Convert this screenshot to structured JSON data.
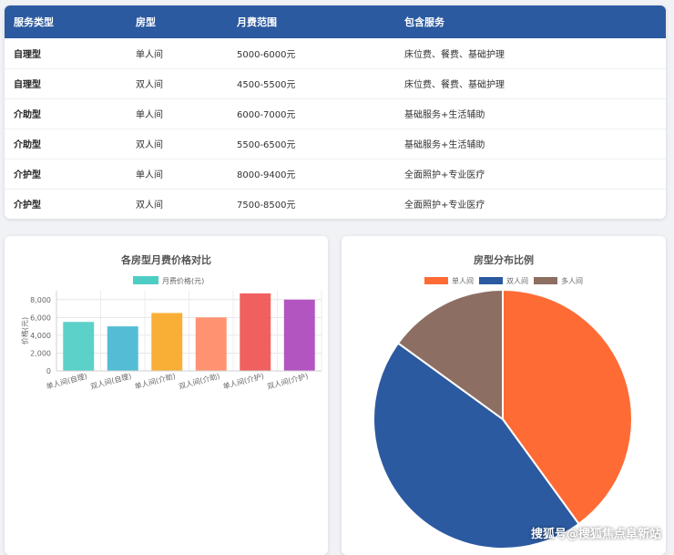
{
  "table": {
    "headers": [
      "服务类型",
      "房型",
      "月费范围",
      "包含服务"
    ],
    "rows": [
      [
        "自理型",
        "单人间",
        "5000-6000元",
        "床位费、餐费、基础护理"
      ],
      [
        "自理型",
        "双人间",
        "4500-5500元",
        "床位费、餐费、基础护理"
      ],
      [
        "介助型",
        "单人间",
        "6000-7000元",
        "基础服务+生活辅助"
      ],
      [
        "介助型",
        "双人间",
        "5500-6500元",
        "基础服务+生活辅助"
      ],
      [
        "介护型",
        "单人间",
        "8000-9400元",
        "全面照护+专业医疗"
      ],
      [
        "介护型",
        "双人间",
        "7500-8500元",
        "全面照护+专业医疗"
      ]
    ]
  },
  "chart_data": [
    {
      "type": "bar",
      "title": "各房型月费价格对比",
      "legend": {
        "position": "top",
        "label": "月费价格(元)"
      },
      "ylabel": "价格(元)",
      "xlabel": "",
      "categories": [
        "单人间(自理)",
        "双人间(自理)",
        "单人间(介助)",
        "双人间(介助)",
        "单人间(介护)",
        "双人间(介护)"
      ],
      "values": [
        5500,
        5000,
        6500,
        6000,
        8700,
        8000
      ],
      "colors": [
        "#4ecdc4",
        "#45b7d1",
        "#f9a825",
        "#ff8a65",
        "#ef5350",
        "#ab47bc"
      ],
      "ylim": [
        0,
        9000
      ],
      "yticks": [
        0,
        2000,
        4000,
        6000,
        8000
      ],
      "ytick_labels": [
        "0",
        "2,000",
        "4,000",
        "6,000",
        "8,000"
      ],
      "grid": true
    },
    {
      "type": "pie",
      "title": "房型分布比例",
      "legend_position": "top",
      "slices": [
        {
          "label": "单人间",
          "value": 40,
          "color": "#ff6b35"
        },
        {
          "label": "双人间",
          "value": 45,
          "color": "#2c5aa0"
        },
        {
          "label": "多人间",
          "value": 15,
          "color": "#8d6e63"
        }
      ]
    }
  ],
  "watermark": "搜狐号@搜狐焦点阜新站"
}
